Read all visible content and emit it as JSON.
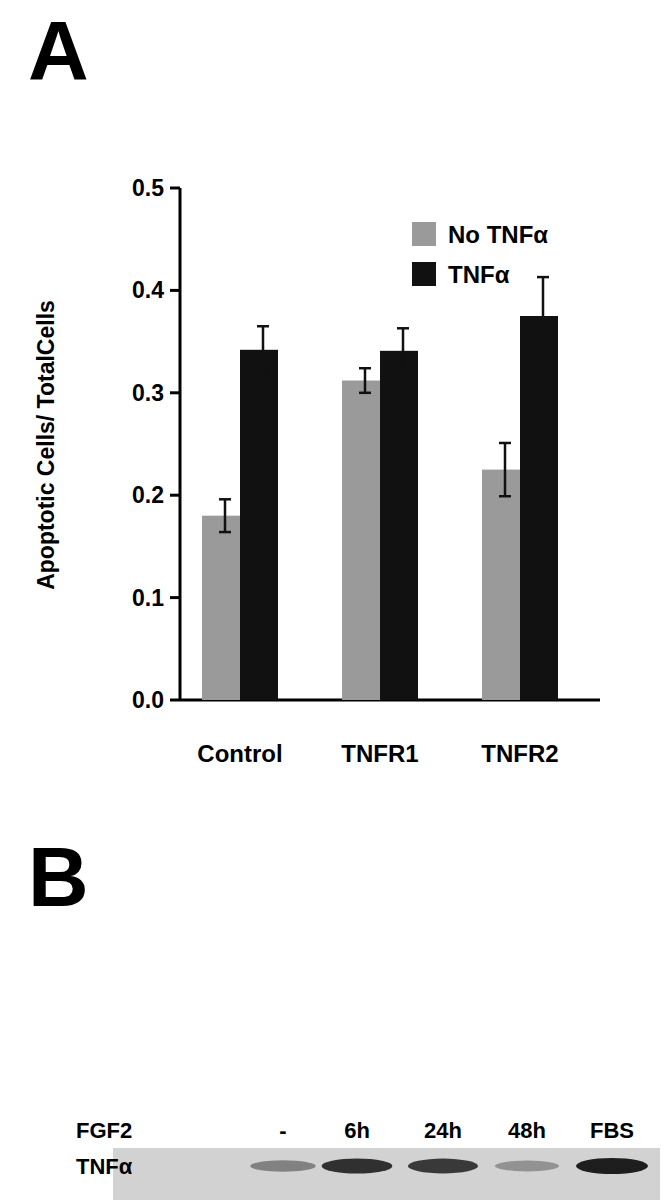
{
  "chart_data": [
    {
      "type": "bar",
      "title": "A",
      "y_label": "Apoptotic Cells/ TotalCells",
      "categories": [
        "Control",
        "TNFR1",
        "TNFR2"
      ],
      "series": [
        {
          "name": "No TNFα",
          "color": "#9a9a9a",
          "values": [
            0.18,
            0.312,
            0.225
          ],
          "errors": [
            0.016,
            0.012,
            0.026
          ]
        },
        {
          "name": "TNFα",
          "color": "#111111",
          "values": [
            0.342,
            0.341,
            0.375
          ],
          "errors": [
            0.023,
            0.022,
            0.038
          ]
        }
      ],
      "ylim": [
        0,
        0.5
      ],
      "yticks": [
        {
          "value": 0,
          "label": "0.0"
        },
        0.1,
        0.2,
        0.3,
        0.4,
        0.5
      ],
      "legend": "top-right",
      "grid": false
    },
    {
      "type": "blot",
      "title": "B",
      "x_label": "FGF2",
      "categories": [
        "-",
        "6h",
        "24h",
        "48h",
        "FBS"
      ],
      "series": [
        {
          "name": "TNFα",
          "color": "#1e1e1e",
          "values": [
            0.45,
            0.9,
            0.85,
            0.35,
            1.0
          ]
        }
      ]
    }
  ]
}
